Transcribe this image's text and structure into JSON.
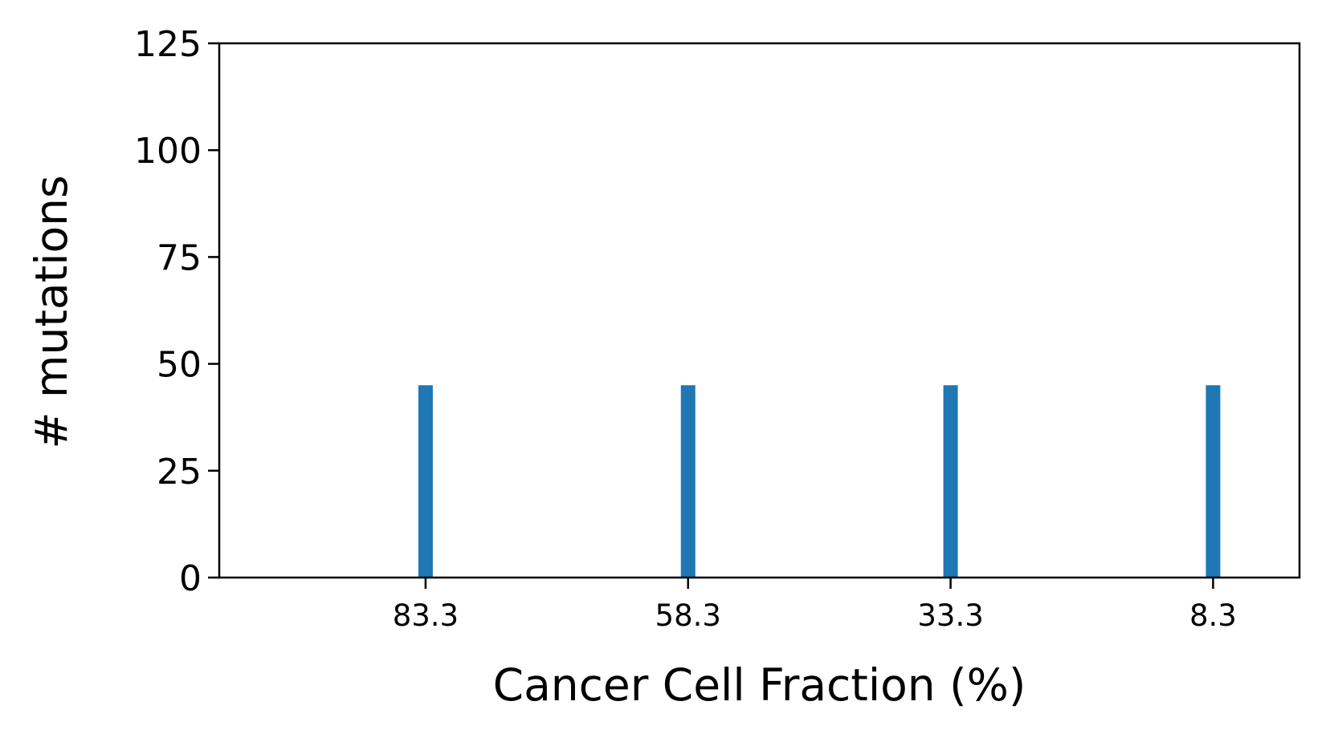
{
  "chart_data": {
    "type": "bar",
    "title": "",
    "xlabel": "Cancer Cell Fraction (%)",
    "ylabel": "# mutations",
    "categories": [
      "83.3",
      "58.3",
      "33.3",
      "8.3"
    ],
    "values": [
      45,
      45,
      45,
      45
    ],
    "ylim": [
      0,
      125
    ],
    "yticks": [
      "0",
      "25",
      "50",
      "75",
      "100",
      "125"
    ],
    "grid": false,
    "legend": "none",
    "bar_color": "#1f77b4"
  }
}
